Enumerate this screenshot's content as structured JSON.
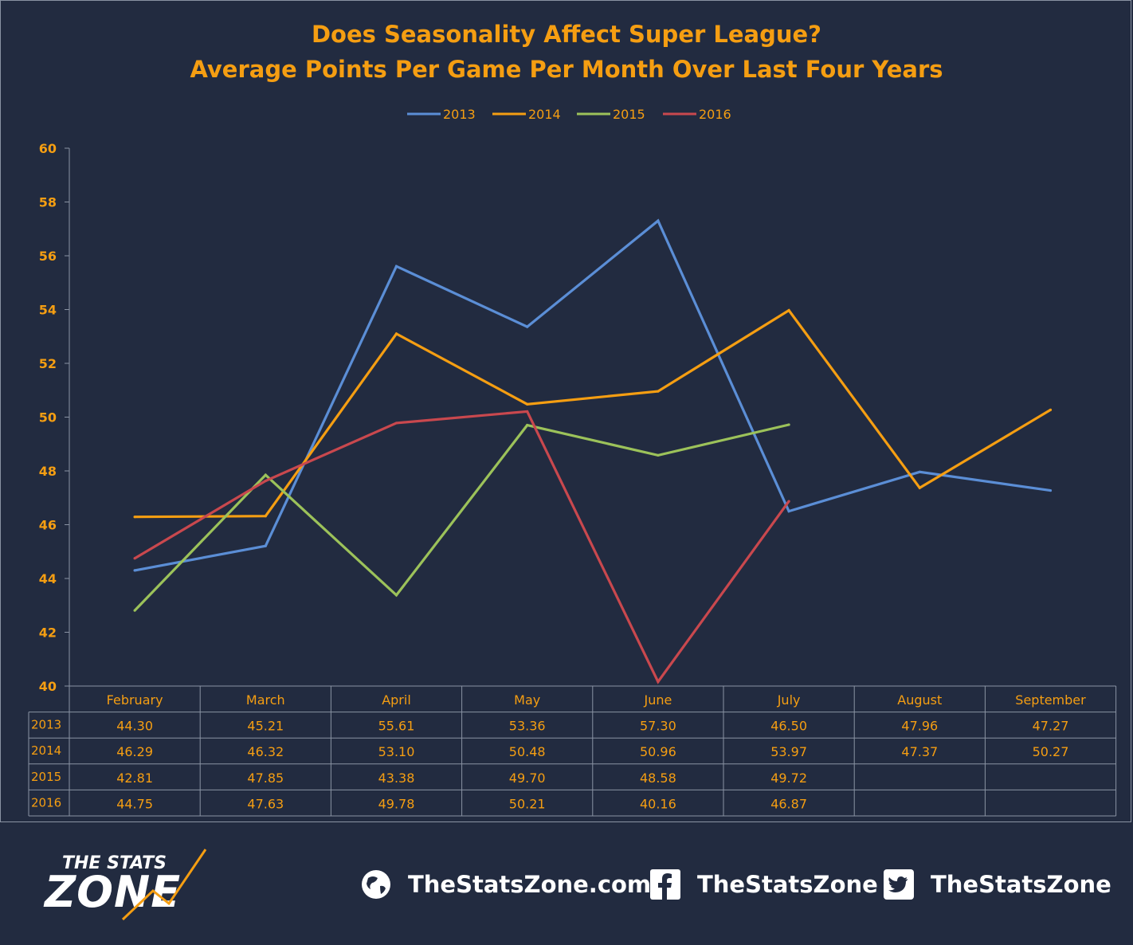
{
  "chart_data": {
    "type": "line",
    "title": "Does Seasonality Affect Super League?",
    "subtitle": "Average Points Per Game Per Month Over Last Four Years",
    "categories": [
      "February",
      "March",
      "April",
      "May",
      "June",
      "July",
      "August",
      "September"
    ],
    "series": [
      {
        "name": "2013",
        "color": "#5b8ed6",
        "values": [
          44.3,
          45.21,
          55.61,
          53.36,
          57.3,
          46.5,
          47.96,
          47.27
        ]
      },
      {
        "name": "2014",
        "color": "#f59e12",
        "values": [
          46.29,
          46.32,
          53.1,
          50.48,
          50.96,
          53.97,
          47.37,
          50.27
        ]
      },
      {
        "name": "2015",
        "color": "#9cc25a",
        "values": [
          42.81,
          47.85,
          43.38,
          49.7,
          48.58,
          49.72,
          null,
          null
        ]
      },
      {
        "name": "2016",
        "color": "#c9484e",
        "values": [
          44.75,
          47.63,
          49.78,
          50.21,
          40.16,
          46.87,
          null,
          null
        ]
      }
    ],
    "table_values": [
      [
        "44.30",
        "45.21",
        "55.61",
        "53.36",
        "57.30",
        "46.50",
        "47.96",
        "47.27"
      ],
      [
        "46.29",
        "46.32",
        "53.10",
        "50.48",
        "50.96",
        "53.97",
        "47.37",
        "50.27"
      ],
      [
        "42.81",
        "47.85",
        "43.38",
        "49.70",
        "48.58",
        "49.72",
        "",
        ""
      ],
      [
        "44.75",
        "47.63",
        "49.78",
        "50.21",
        "40.16",
        "46.87",
        "",
        ""
      ]
    ],
    "ylim": [
      40,
      60
    ],
    "yticks": [
      40,
      42,
      44,
      46,
      48,
      50,
      52,
      54,
      56,
      58,
      60
    ],
    "grid": false,
    "legend_position": "top-center",
    "data_table": true
  },
  "colors": {
    "background": "#222b40",
    "text_accent": "#f59e12",
    "table_border": "#8a93a3",
    "footer_text": "#ffffff"
  },
  "footer": {
    "logo_line1": "THE STATS",
    "logo_line2": "ZONE",
    "website": "TheStatsZone.com",
    "facebook": "TheStatsZone",
    "twitter": "TheStatsZone",
    "icons": [
      "globe-icon",
      "facebook-icon",
      "twitter-icon"
    ]
  }
}
